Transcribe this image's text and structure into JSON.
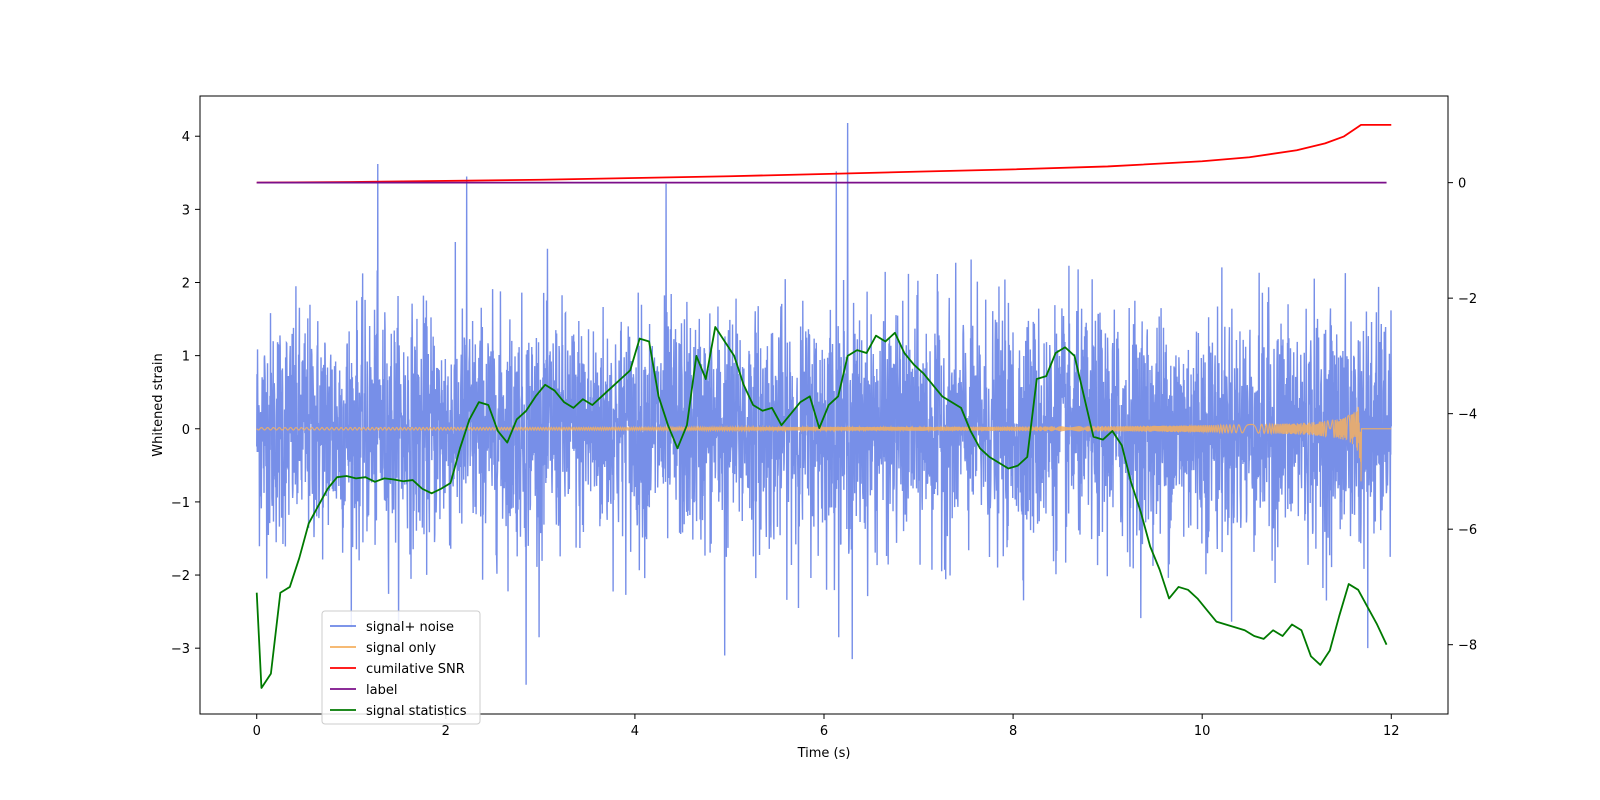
{
  "chart_data": {
    "type": "line",
    "title": "",
    "xlabel": "Time (s)",
    "ylabel": "Whitened strain",
    "xlim": [
      -0.6,
      12.6
    ],
    "ylim": [
      -3.9,
      4.55
    ],
    "y2lim": [
      -9.2,
      1.5
    ],
    "grid": false,
    "legend_position": "lower-left",
    "x_ticks": [
      0,
      2,
      4,
      6,
      8,
      10,
      12
    ],
    "x_tick_labels": [
      "0",
      "2",
      "4",
      "6",
      "8",
      "10",
      "12"
    ],
    "y_ticks": [
      -3,
      -2,
      -1,
      0,
      1,
      2,
      3,
      4
    ],
    "y_tick_labels": [
      "−3",
      "−2",
      "−1",
      "0",
      "1",
      "2",
      "3",
      "4"
    ],
    "y2_ticks": [
      -8,
      -6,
      -4,
      -2,
      0
    ],
    "y2_tick_labels": [
      "−8",
      "−6",
      "−4",
      "−2",
      "0"
    ],
    "colors": {
      "signal_noise": "#6b86e6",
      "signal_only": "#f5b060",
      "snr": "#ff0000",
      "label": "#7b0f8a",
      "statistics": "#007a00"
    },
    "series": [
      {
        "name": "signal+ noise",
        "axis": "left",
        "description": "whitened noise, std ~0.75, spikes up to 4.18 near t=6.25",
        "t_range": [
          0,
          12
        ],
        "spikes": [
          [
            1.28,
            3.62
          ],
          [
            2.22,
            3.45
          ],
          [
            4.33,
            3.35
          ],
          [
            6.13,
            3.52
          ],
          [
            6.25,
            4.18
          ],
          [
            2.85,
            -3.5
          ],
          [
            6.3,
            -3.15
          ],
          [
            4.95,
            -3.1
          ],
          [
            11.75,
            -3.0
          ]
        ]
      },
      {
        "name": "signal only",
        "axis": "left",
        "description": "chirp with growing amplitude, peak ~0.55 at t=11.68",
        "t_range": [
          0,
          11.68
        ],
        "peak": [
          11.68,
          0.55
        ]
      },
      {
        "name": "cumilative SNR",
        "axis": "right",
        "x": [
          0,
          1,
          2,
          3,
          4,
          5,
          6,
          7,
          8,
          9,
          10,
          10.5,
          11,
          11.3,
          11.5,
          11.68,
          12
        ],
        "values": [
          0,
          0.01,
          0.03,
          0.05,
          0.08,
          0.11,
          0.15,
          0.19,
          0.23,
          0.28,
          0.37,
          0.44,
          0.56,
          0.68,
          0.8,
          1.0,
          1.0
        ]
      },
      {
        "name": "label",
        "axis": "right",
        "x": [
          0,
          11.95
        ],
        "values": [
          0,
          0
        ]
      },
      {
        "name": "signal statistics",
        "axis": "right",
        "x": [
          0,
          0.05,
          0.15,
          0.25,
          0.35,
          0.45,
          0.55,
          0.65,
          0.75,
          0.85,
          0.95,
          1.05,
          1.15,
          1.25,
          1.35,
          1.45,
          1.55,
          1.65,
          1.75,
          1.85,
          1.95,
          2.05,
          2.15,
          2.25,
          2.35,
          2.45,
          2.55,
          2.65,
          2.75,
          2.85,
          2.95,
          3.05,
          3.15,
          3.25,
          3.35,
          3.45,
          3.55,
          3.65,
          3.75,
          3.85,
          3.95,
          4.05,
          4.15,
          4.25,
          4.35,
          4.45,
          4.55,
          4.65,
          4.75,
          4.85,
          4.95,
          5.05,
          5.15,
          5.25,
          5.35,
          5.45,
          5.55,
          5.65,
          5.75,
          5.85,
          5.95,
          6.05,
          6.15,
          6.25,
          6.35,
          6.45,
          6.55,
          6.65,
          6.75,
          6.85,
          6.95,
          7.05,
          7.15,
          7.25,
          7.35,
          7.45,
          7.55,
          7.65,
          7.75,
          7.85,
          7.95,
          8.05,
          8.15,
          8.25,
          8.35,
          8.45,
          8.55,
          8.65,
          8.75,
          8.85,
          8.95,
          9.05,
          9.15,
          9.25,
          9.35,
          9.45,
          9.55,
          9.65,
          9.75,
          9.85,
          9.95,
          10.05,
          10.15,
          10.25,
          10.35,
          10.45,
          10.55,
          10.65,
          10.75,
          10.85,
          10.95,
          11.05,
          11.15,
          11.25,
          11.35,
          11.45,
          11.55,
          11.65,
          11.75,
          11.85,
          11.95
        ],
        "values": [
          -7.1,
          -8.75,
          -8.5,
          -7.1,
          -7.0,
          -6.5,
          -5.9,
          -5.6,
          -5.3,
          -5.1,
          -5.08,
          -5.12,
          -5.1,
          -5.18,
          -5.12,
          -5.14,
          -5.17,
          -5.15,
          -5.3,
          -5.38,
          -5.3,
          -5.2,
          -4.6,
          -4.1,
          -3.8,
          -3.85,
          -4.3,
          -4.5,
          -4.1,
          -3.95,
          -3.7,
          -3.5,
          -3.6,
          -3.8,
          -3.9,
          -3.75,
          -3.85,
          -3.7,
          -3.55,
          -3.4,
          -3.25,
          -2.7,
          -2.75,
          -3.7,
          -4.2,
          -4.6,
          -4.2,
          -3.0,
          -3.4,
          -2.5,
          -2.75,
          -3.0,
          -3.5,
          -3.85,
          -3.95,
          -3.9,
          -4.2,
          -4.0,
          -3.8,
          -3.7,
          -4.25,
          -3.85,
          -3.7,
          -3.0,
          -2.9,
          -2.95,
          -2.65,
          -2.75,
          -2.6,
          -2.95,
          -3.15,
          -3.3,
          -3.5,
          -3.7,
          -3.8,
          -3.9,
          -4.3,
          -4.6,
          -4.75,
          -4.85,
          -4.95,
          -4.9,
          -4.75,
          -3.4,
          -3.35,
          -2.95,
          -2.85,
          -3.0,
          -3.7,
          -4.4,
          -4.45,
          -4.3,
          -4.55,
          -5.2,
          -5.7,
          -6.3,
          -6.7,
          -7.2,
          -7.0,
          -7.05,
          -7.2,
          -7.4,
          -7.6,
          -7.65,
          -7.7,
          -7.75,
          -7.85,
          -7.9,
          -7.75,
          -7.85,
          -7.65,
          -7.75,
          -8.2,
          -8.35,
          -8.1,
          -7.5,
          -6.95,
          -7.05,
          -7.35,
          -7.65,
          -8.0
        ]
      }
    ]
  },
  "legend": {
    "items": [
      {
        "label": "signal+ noise",
        "color": "#6b86e6"
      },
      {
        "label": "signal only",
        "color": "#f5b060"
      },
      {
        "label": "cumilative SNR",
        "color": "#ff0000"
      },
      {
        "label": "label",
        "color": "#7b0f8a"
      },
      {
        "label": "signal statistics",
        "color": "#007a00"
      }
    ]
  }
}
